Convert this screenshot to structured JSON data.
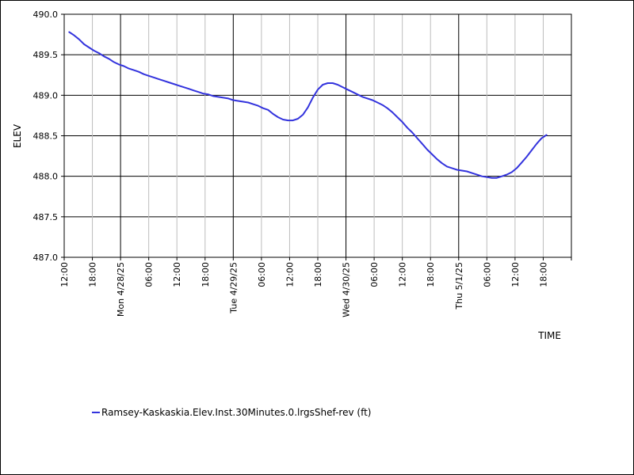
{
  "chart_data": {
    "type": "line",
    "title": "",
    "xlabel": "TIME",
    "ylabel": "ELEV",
    "ylim": [
      487.0,
      490.0
    ],
    "y_ticks": [
      "487.0",
      "487.5",
      "488.0",
      "488.5",
      "489.0",
      "489.5",
      "490.0"
    ],
    "x_range_hours": [
      0,
      102
    ],
    "x_ticks": [
      {
        "label": "12:00",
        "major": true
      },
      {
        "label": "18:00",
        "major": false
      },
      {
        "label": "Mon 4/28/25",
        "major": true
      },
      {
        "label": "06:00",
        "major": false
      },
      {
        "label": "12:00",
        "major": false
      },
      {
        "label": "18:00",
        "major": false
      },
      {
        "label": "Tue 4/29/25",
        "major": true
      },
      {
        "label": "06:00",
        "major": false
      },
      {
        "label": "12:00",
        "major": false
      },
      {
        "label": "18:00",
        "major": false
      },
      {
        "label": "Wed 4/30/25",
        "major": true
      },
      {
        "label": "06:00",
        "major": false
      },
      {
        "label": "12:00",
        "major": false
      },
      {
        "label": "18:00",
        "major": false
      },
      {
        "label": "Thu 5/1/25",
        "major": true
      },
      {
        "label": "06:00",
        "major": false
      },
      {
        "label": "12:00",
        "major": false
      },
      {
        "label": "18:00",
        "major": false
      }
    ],
    "grid": true,
    "legend_position": "bottom-left",
    "series": [
      {
        "name": "Ramsey-Kaskaskia.Elev.Inst.30Minutes.0.lrgsShef-rev (ft)",
        "color": "#3333dd",
        "x": [
          1,
          2,
          3,
          4,
          5,
          6,
          7,
          8,
          9,
          10,
          11,
          12,
          13,
          14,
          15,
          16,
          17,
          18,
          19,
          20,
          21,
          22,
          23,
          24,
          25,
          26,
          27,
          28,
          29,
          30,
          31,
          32,
          33,
          34,
          35,
          36,
          37,
          38,
          39,
          40,
          41,
          42,
          43,
          44,
          45,
          46,
          47,
          48,
          49,
          50,
          51,
          52,
          53,
          54,
          55,
          56,
          57,
          58,
          59,
          60,
          61,
          62,
          63,
          64,
          65,
          66,
          67,
          68,
          69,
          70,
          71,
          72,
          73,
          74,
          75,
          76,
          77,
          78,
          79,
          80,
          81,
          82,
          83,
          84,
          85,
          86,
          87,
          88,
          89,
          90,
          91,
          92,
          93,
          94,
          95,
          96,
          97
        ],
        "y": [
          489.78,
          489.74,
          489.69,
          489.63,
          489.59,
          489.55,
          489.52,
          489.48,
          489.45,
          489.41,
          489.38,
          489.36,
          489.33,
          489.31,
          489.29,
          489.26,
          489.24,
          489.22,
          489.2,
          489.18,
          489.16,
          489.14,
          489.12,
          489.1,
          489.08,
          489.06,
          489.04,
          489.02,
          489.01,
          488.99,
          488.98,
          488.97,
          488.96,
          488.94,
          488.93,
          488.92,
          488.91,
          488.89,
          488.87,
          488.84,
          488.82,
          488.77,
          488.73,
          488.7,
          488.69,
          488.69,
          488.71,
          488.76,
          488.85,
          488.97,
          489.07,
          489.13,
          489.15,
          489.15,
          489.13,
          489.1,
          489.07,
          489.04,
          489.01,
          488.98,
          488.96,
          488.94,
          488.91,
          488.88,
          488.84,
          488.79,
          488.73,
          488.67,
          488.6,
          488.54,
          488.47,
          488.4,
          488.33,
          488.27,
          488.21,
          488.16,
          488.12,
          488.1,
          488.08,
          488.07,
          488.06,
          488.04,
          488.02,
          488.0,
          487.99,
          487.98,
          487.98,
          488.0,
          488.02,
          488.05,
          488.1,
          488.17,
          488.24,
          488.32,
          488.4,
          488.47,
          488.51
        ]
      }
    ]
  }
}
